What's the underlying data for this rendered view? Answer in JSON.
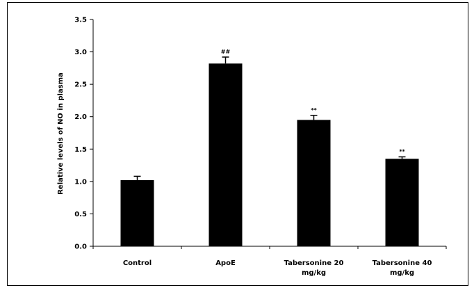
{
  "chart_data": {
    "type": "bar",
    "title": "",
    "xlabel": "",
    "ylabel": "Relative levels of NO in plasma",
    "ylim": [
      0,
      3.5
    ],
    "yticks": [
      "0.0",
      "0.5",
      "1.0",
      "1.5",
      "2.0",
      "2.5",
      "3.0",
      "3.5"
    ],
    "categories": [
      [
        "Control"
      ],
      [
        "ApoE"
      ],
      [
        "Tabersonine 20",
        "mg/kg"
      ],
      [
        "Tabersonine 40",
        "mg/kg"
      ]
    ],
    "values": [
      1.02,
      2.82,
      1.95,
      1.35
    ],
    "errors": [
      0.06,
      0.1,
      0.07,
      0.03
    ],
    "annotations": [
      "",
      "##",
      "**",
      "**"
    ],
    "bar_color": "#000000",
    "grid": false,
    "legend": "none"
  }
}
